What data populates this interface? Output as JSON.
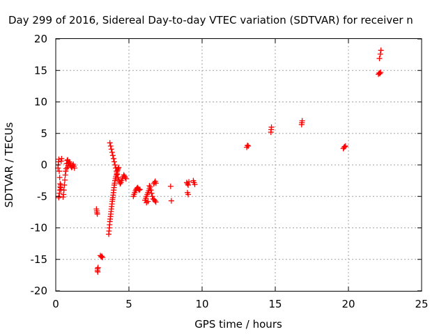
{
  "chart_data": {
    "type": "scatter",
    "title": "Day 299 of 2016, Sidereal Day-to-day VTEC variation (SDTVAR) for receiver n",
    "xlabel": "GPS time / hours",
    "ylabel": "SDTVAR / TECUs",
    "xlim": [
      0,
      25
    ],
    "ylim": [
      -20,
      20
    ],
    "xticks": [
      0,
      5,
      10,
      15,
      20,
      25
    ],
    "yticks": [
      -20,
      -15,
      -10,
      -5,
      0,
      5,
      10,
      15,
      20
    ],
    "xtick_labels": [
      "0",
      "5",
      "10",
      "15",
      "20",
      "25"
    ],
    "ytick_labels": [
      "-20",
      "-15",
      "-10",
      "-5",
      "0",
      "5",
      "10",
      "15",
      "20"
    ],
    "grid": true,
    "marker": "+",
    "color": "#ff0000",
    "series": [
      {
        "name": "SDTVAR",
        "x": [
          0.15,
          0.17,
          0.19,
          0.21,
          0.24,
          0.27,
          0.3,
          0.33,
          0.36,
          0.2,
          0.22,
          0.25,
          0.28,
          0.31,
          0.34,
          0.37,
          0.4,
          0.5,
          0.53,
          0.56,
          0.59,
          0.62,
          0.65,
          0.68,
          0.71,
          0.74,
          0.78,
          0.82,
          0.86,
          0.8,
          0.84,
          0.88,
          0.92,
          0.96,
          1.0,
          1.04,
          1.08,
          1.12,
          1.16,
          1.2,
          1.24,
          1.28,
          2.78,
          2.8,
          2.82,
          2.84,
          2.86,
          2.85,
          2.87,
          2.89,
          3.05,
          3.1,
          3.15,
          3.2,
          3.62,
          3.64,
          3.66,
          3.68,
          3.7,
          3.72,
          3.74,
          3.76,
          3.78,
          3.8,
          3.82,
          3.84,
          3.86,
          3.88,
          3.9,
          3.92,
          3.94,
          3.96,
          3.98,
          4.0,
          4.02,
          4.05,
          4.08,
          4.11,
          4.14,
          4.17,
          4.2,
          4.23,
          4.26,
          4.3,
          3.7,
          3.75,
          3.8,
          3.85,
          3.9,
          3.95,
          4.0,
          4.05,
          4.1,
          4.15,
          4.2,
          4.25,
          4.3,
          4.35,
          4.4,
          4.45,
          4.5,
          4.55,
          4.6,
          4.65,
          4.7,
          4.75,
          4.8,
          5.3,
          5.35,
          5.4,
          5.45,
          5.5,
          5.55,
          5.6,
          5.65,
          5.7,
          5.75,
          6.1,
          6.15,
          6.2,
          6.25,
          6.3,
          6.35,
          6.4,
          6.45,
          6.5,
          6.55,
          6.6,
          6.65,
          6.2,
          6.3,
          6.4,
          6.7,
          6.75,
          6.8,
          6.85,
          6.72,
          6.78,
          6.84,
          7.85,
          7.9,
          8.95,
          9.0,
          9.05,
          9.1,
          9.0,
          9.05,
          9.4,
          9.45,
          9.5,
          13.05,
          13.1,
          13.15,
          14.7,
          14.72,
          14.74,
          16.8,
          16.82,
          16.84,
          19.65,
          19.7,
          19.75,
          19.8,
          22.05,
          22.1,
          22.15,
          22.2,
          22.12,
          22.18,
          22.22
        ],
        "y": [
          -0.5,
          0.0,
          0.5,
          0.9,
          -1.0,
          -2.0,
          -3.0,
          -3.6,
          -3.9,
          -5.2,
          -5.0,
          -4.5,
          -4.0,
          -3.5,
          -3.2,
          0.6,
          1.0,
          -5.1,
          -4.7,
          -4.0,
          -3.2,
          -2.4,
          -1.6,
          -1.0,
          -0.6,
          0.2,
          0.7,
          0.8,
          0.3,
          -0.4,
          -0.1,
          0.2,
          0.5,
          0.3,
          0.0,
          -0.2,
          -0.4,
          -0.3,
          -0.1,
          0.1,
          -0.2,
          -0.5,
          -7.0,
          -7.3,
          -7.6,
          -7.8,
          -16.5,
          -16.8,
          -17.0,
          -16.3,
          -14.4,
          -14.6,
          -14.5,
          -14.7,
          -11.0,
          -10.5,
          -10.0,
          -9.5,
          -9.0,
          -8.6,
          -8.2,
          -7.8,
          -7.4,
          -7.0,
          -6.6,
          -6.2,
          -5.8,
          -5.5,
          -5.2,
          -4.8,
          -4.4,
          -4.0,
          -3.6,
          -3.2,
          -2.9,
          -2.5,
          -2.2,
          -1.9,
          -1.6,
          -1.3,
          -1.0,
          -0.8,
          -0.6,
          -0.4,
          3.5,
          3.0,
          2.5,
          2.0,
          1.5,
          1.0,
          0.5,
          0.0,
          -0.5,
          -1.0,
          -1.5,
          -2.0,
          -2.4,
          -2.7,
          -3.0,
          -2.8,
          -2.5,
          -2.2,
          -1.9,
          -1.6,
          -1.8,
          -2.0,
          -2.2,
          -5.0,
          -4.7,
          -4.4,
          -4.1,
          -3.9,
          -3.7,
          -3.6,
          -3.8,
          -4.0,
          -3.9,
          -5.6,
          -5.3,
          -5.0,
          -4.7,
          -4.4,
          -4.1,
          -3.8,
          -3.5,
          -4.0,
          -4.5,
          -5.0,
          -5.4,
          -6.0,
          -5.8,
          -3.3,
          -3.0,
          -2.8,
          -2.6,
          -2.9,
          -5.5,
          -5.7,
          -5.9,
          -3.4,
          -5.7,
          -2.8,
          -3.0,
          -3.2,
          -2.7,
          -4.4,
          -4.7,
          -2.5,
          -2.8,
          -3.1,
          2.8,
          3.1,
          3.0,
          5.2,
          5.6,
          6.0,
          6.4,
          6.7,
          7.0,
          2.6,
          2.8,
          2.9,
          3.0,
          14.4,
          14.6,
          14.5,
          14.7,
          16.9,
          17.6,
          18.2
        ]
      }
    ]
  }
}
